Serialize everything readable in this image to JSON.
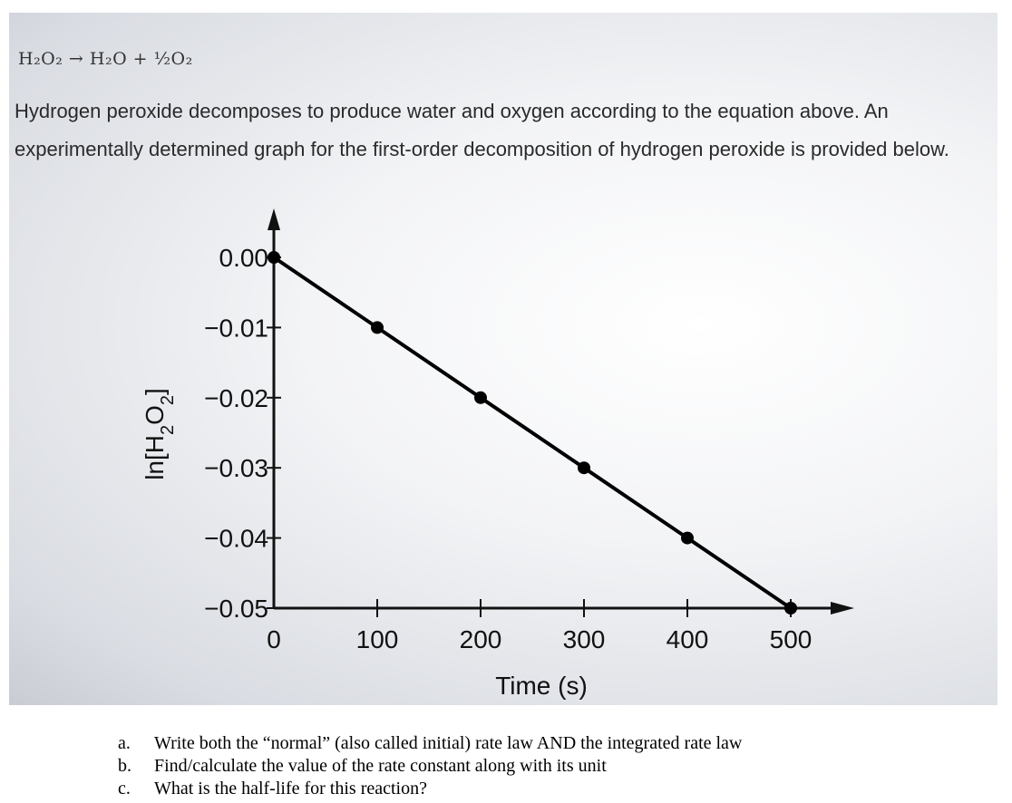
{
  "problem": {
    "equation": "H₂O₂ → H₂O + ½O₂",
    "intro": "Hydrogen peroxide decomposes to produce water and oxygen according to the equation above. An experimentally determined graph for the first-order decomposition of hydrogen peroxide is provided below."
  },
  "chart_data": {
    "type": "line",
    "xlabel": "Time (s)",
    "ylabel_main": "ln[H",
    "ylabel_sub1": "2",
    "ylabel_mid": "O",
    "ylabel_sub2": "2",
    "ylabel_end": "]",
    "xlim": [
      0,
      500
    ],
    "ylim": [
      -0.05,
      0.0
    ],
    "x_ticks": [
      "0",
      "100",
      "200",
      "300",
      "400",
      "500"
    ],
    "y_ticks": [
      "0.00",
      "−0.01",
      "−0.02",
      "−0.03",
      "−0.04",
      "−0.05"
    ],
    "series": [
      {
        "x": [
          0,
          100,
          200,
          300,
          400,
          500
        ],
        "y": [
          0.0,
          -0.01,
          -0.02,
          -0.03,
          -0.04,
          -0.05
        ]
      }
    ],
    "grid": false,
    "line_color": "#000000"
  },
  "questions": [
    {
      "letter": "a.",
      "text": "Write both the “normal” (also called initial) rate law AND the integrated rate law"
    },
    {
      "letter": "b.",
      "text": "Find/calculate the value of the rate constant along with its unit"
    },
    {
      "letter": "c.",
      "text": "What is the half-life for this reaction?"
    }
  ]
}
